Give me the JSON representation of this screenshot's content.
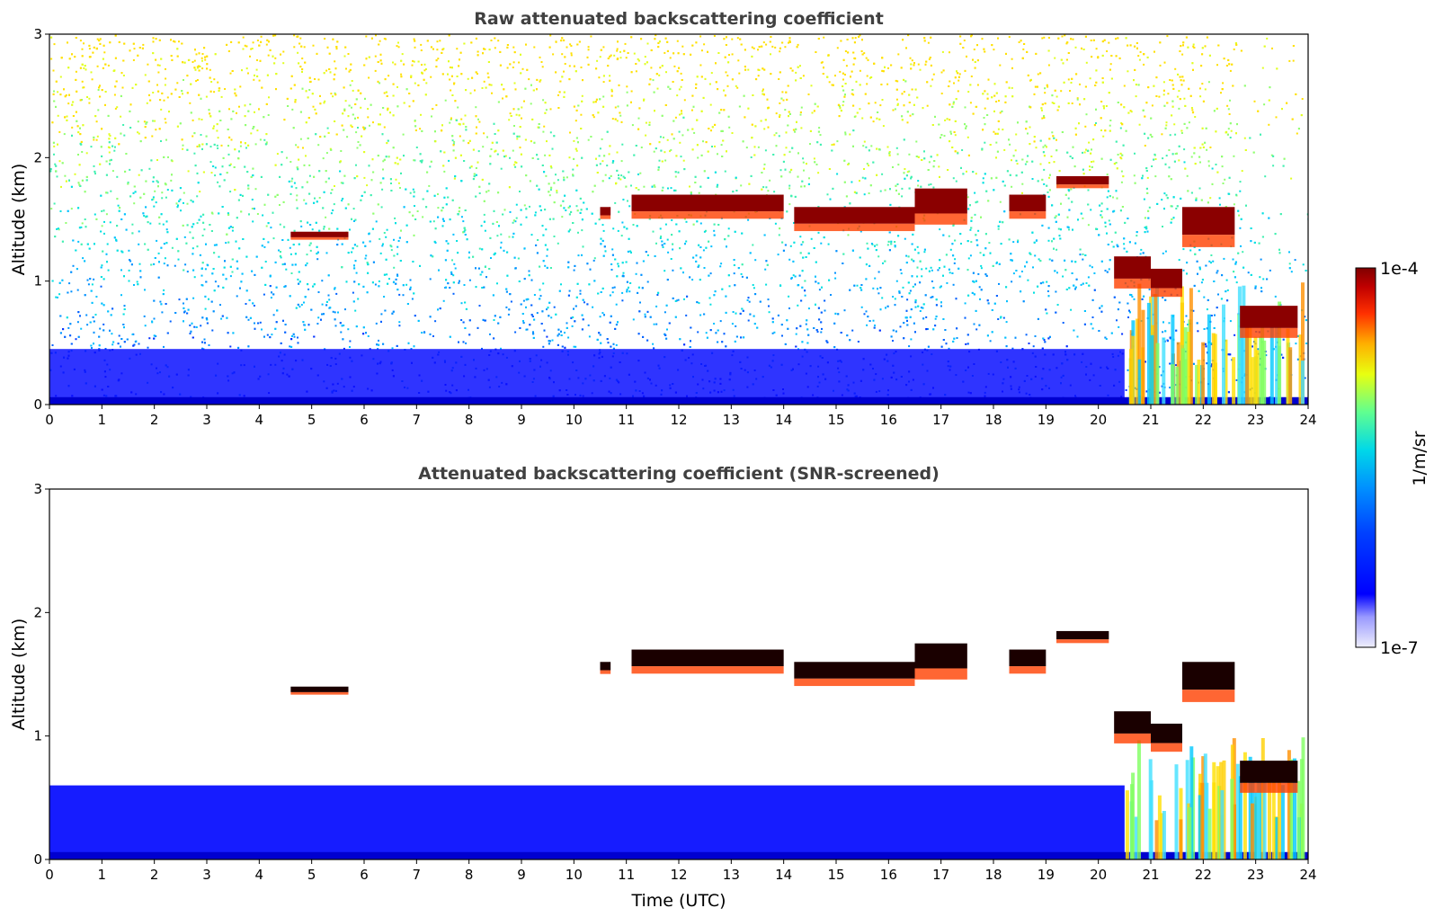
{
  "chart_data": [
    {
      "type": "heatmap",
      "title": "Raw attenuated backscattering coefficient",
      "xlabel": "",
      "ylabel": "Altitude (km)",
      "xlim": [
        0,
        24
      ],
      "ylim": [
        0,
        3
      ],
      "xticks": [
        0,
        1,
        2,
        3,
        4,
        5,
        6,
        7,
        8,
        9,
        10,
        11,
        12,
        13,
        14,
        15,
        16,
        17,
        18,
        19,
        20,
        21,
        22,
        23,
        24
      ],
      "yticks": [
        0,
        1,
        2,
        3
      ],
      "screened": false,
      "cloud_layers": [
        {
          "t": [
            4.6,
            5.7
          ],
          "alt_km": [
            1.3,
            1.4
          ]
        },
        {
          "t": [
            10.5,
            10.7
          ],
          "alt_km": [
            1.45,
            1.6
          ]
        },
        {
          "t": [
            11.1,
            14.0
          ],
          "alt_km": [
            1.4,
            1.7
          ]
        },
        {
          "t": [
            14.2,
            16.5
          ],
          "alt_km": [
            1.3,
            1.6
          ]
        },
        {
          "t": [
            16.5,
            17.5
          ],
          "alt_km": [
            1.3,
            1.75
          ]
        },
        {
          "t": [
            18.3,
            19.0
          ],
          "alt_km": [
            1.4,
            1.7
          ]
        },
        {
          "t": [
            19.2,
            20.2
          ],
          "alt_km": [
            1.7,
            1.85
          ]
        },
        {
          "t": [
            20.3,
            21.0
          ],
          "alt_km": [
            0.8,
            1.2
          ]
        },
        {
          "t": [
            21.0,
            21.6
          ],
          "alt_km": [
            0.75,
            1.1
          ]
        },
        {
          "t": [
            21.6,
            22.6
          ],
          "alt_km": [
            1.1,
            1.6
          ]
        },
        {
          "t": [
            22.7,
            23.8
          ],
          "alt_km": [
            0.4,
            0.8
          ]
        }
      ]
    },
    {
      "type": "heatmap",
      "title": "Attenuated backscattering coefficient (SNR-screened)",
      "xlabel": "Time (UTC)",
      "ylabel": "Altitude (km)",
      "xlim": [
        0,
        24
      ],
      "ylim": [
        0,
        3
      ],
      "xticks": [
        0,
        1,
        2,
        3,
        4,
        5,
        6,
        7,
        8,
        9,
        10,
        11,
        12,
        13,
        14,
        15,
        16,
        17,
        18,
        19,
        20,
        21,
        22,
        23,
        24
      ],
      "yticks": [
        0,
        1,
        2,
        3
      ],
      "screened": true,
      "cloud_layers": [
        {
          "t": [
            4.6,
            5.7
          ],
          "alt_km": [
            1.3,
            1.4
          ]
        },
        {
          "t": [
            10.5,
            10.7
          ],
          "alt_km": [
            1.45,
            1.6
          ]
        },
        {
          "t": [
            11.1,
            14.0
          ],
          "alt_km": [
            1.4,
            1.7
          ]
        },
        {
          "t": [
            14.2,
            16.5
          ],
          "alt_km": [
            1.3,
            1.6
          ]
        },
        {
          "t": [
            16.5,
            17.5
          ],
          "alt_km": [
            1.3,
            1.75
          ]
        },
        {
          "t": [
            18.3,
            19.0
          ],
          "alt_km": [
            1.4,
            1.7
          ]
        },
        {
          "t": [
            19.2,
            20.2
          ],
          "alt_km": [
            1.7,
            1.85
          ]
        },
        {
          "t": [
            20.3,
            21.0
          ],
          "alt_km": [
            0.8,
            1.2
          ]
        },
        {
          "t": [
            21.0,
            21.6
          ],
          "alt_km": [
            0.75,
            1.1
          ]
        },
        {
          "t": [
            21.6,
            22.6
          ],
          "alt_km": [
            1.1,
            1.6
          ]
        },
        {
          "t": [
            22.7,
            23.8
          ],
          "alt_km": [
            0.4,
            0.8
          ]
        }
      ]
    }
  ],
  "colorbar": {
    "label": "1/m/sr",
    "max_label": "1e-4",
    "min_label": "1e-7",
    "range": [
      1e-07,
      0.0001
    ],
    "scale": "log",
    "colormap": [
      "#eeeefc",
      "#0000ff",
      "#0080ff",
      "#00e0e0",
      "#80ff80",
      "#ffff00",
      "#ff8000",
      "#ff0000",
      "#800000"
    ]
  }
}
